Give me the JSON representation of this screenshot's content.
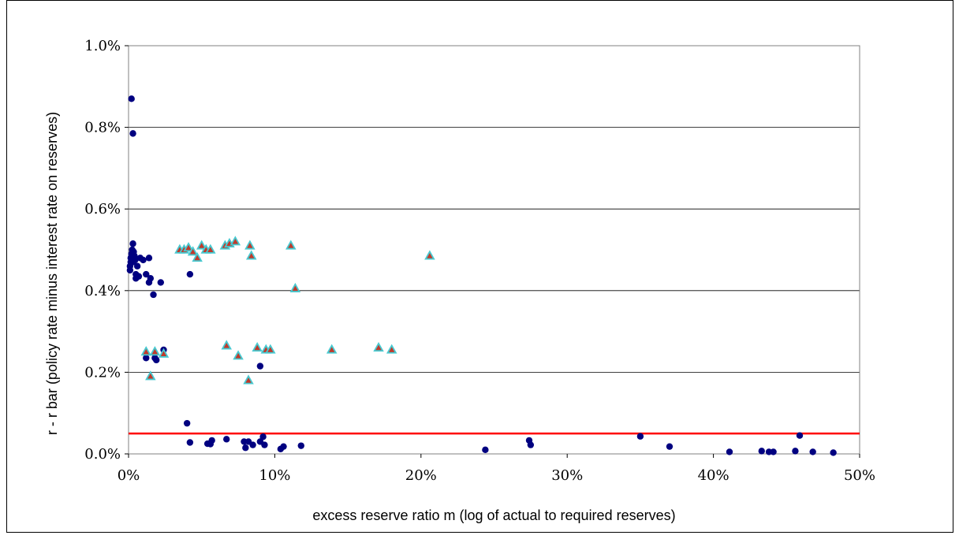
{
  "chart_data": {
    "type": "scatter",
    "title": "",
    "xlabel": "excess reserve ratio m (log of actual to required reserves)",
    "ylabel": "r - r bar (policy rate minus interest rate on reserves)",
    "xlim": [
      0,
      50
    ],
    "ylim": [
      0,
      1.0
    ],
    "x_ticks": [
      0,
      10,
      20,
      30,
      40,
      50
    ],
    "x_tick_labels": [
      "0%",
      "10%",
      "20%",
      "30%",
      "40%",
      "50%"
    ],
    "y_ticks": [
      0,
      0.2,
      0.4,
      0.6,
      0.8,
      1.0
    ],
    "y_tick_labels": [
      "0.0%",
      "0.2%",
      "0.4%",
      "0.6%",
      "0.8%",
      "1.0%"
    ],
    "grid": "horizontal",
    "reference_line": {
      "y": 0.05,
      "color": "#ff0000"
    },
    "colors": {
      "circle": "#000080",
      "triangle_fill": "#c0392b",
      "triangle_stroke": "#48c9d0"
    },
    "series": [
      {
        "marker": "circle",
        "points": [
          [
            0.2,
            0.87
          ],
          [
            0.3,
            0.785
          ],
          [
            0.1,
            0.45
          ],
          [
            0.1,
            0.46
          ],
          [
            0.15,
            0.47
          ],
          [
            0.15,
            0.48
          ],
          [
            0.2,
            0.49
          ],
          [
            0.25,
            0.5
          ],
          [
            0.3,
            0.515
          ],
          [
            0.3,
            0.47
          ],
          [
            0.35,
            0.495
          ],
          [
            0.4,
            0.485
          ],
          [
            0.45,
            0.475
          ],
          [
            0.5,
            0.44
          ],
          [
            0.5,
            0.43
          ],
          [
            0.6,
            0.46
          ],
          [
            0.7,
            0.435
          ],
          [
            0.8,
            0.48
          ],
          [
            1.0,
            0.475
          ],
          [
            1.2,
            0.44
          ],
          [
            1.4,
            0.48
          ],
          [
            1.5,
            0.43
          ],
          [
            1.4,
            0.42
          ],
          [
            1.7,
            0.39
          ],
          [
            2.2,
            0.42
          ],
          [
            4.2,
            0.44
          ],
          [
            1.2,
            0.235
          ],
          [
            1.8,
            0.235
          ],
          [
            1.9,
            0.23
          ],
          [
            2.4,
            0.255
          ],
          [
            9.0,
            0.215
          ],
          [
            4.0,
            0.075
          ],
          [
            4.2,
            0.028
          ],
          [
            5.4,
            0.025
          ],
          [
            5.6,
            0.024
          ],
          [
            5.7,
            0.033
          ],
          [
            6.7,
            0.036
          ],
          [
            7.9,
            0.03
          ],
          [
            8.0,
            0.015
          ],
          [
            8.2,
            0.03
          ],
          [
            8.5,
            0.022
          ],
          [
            9.0,
            0.03
          ],
          [
            9.2,
            0.042
          ],
          [
            9.3,
            0.022
          ],
          [
            10.4,
            0.012
          ],
          [
            10.6,
            0.018
          ],
          [
            11.8,
            0.02
          ],
          [
            24.4,
            0.01
          ],
          [
            27.4,
            0.033
          ],
          [
            27.5,
            0.022
          ],
          [
            35.0,
            0.043
          ],
          [
            37.0,
            0.018
          ],
          [
            41.1,
            0.005
          ],
          [
            43.3,
            0.007
          ],
          [
            43.8,
            0.005
          ],
          [
            44.1,
            0.005
          ],
          [
            45.6,
            0.007
          ],
          [
            45.9,
            0.045
          ],
          [
            46.8,
            0.005
          ],
          [
            48.2,
            0.003
          ]
        ]
      },
      {
        "marker": "triangle",
        "points": [
          [
            3.5,
            0.5
          ],
          [
            3.8,
            0.5
          ],
          [
            4.1,
            0.505
          ],
          [
            4.4,
            0.495
          ],
          [
            4.7,
            0.48
          ],
          [
            5.0,
            0.51
          ],
          [
            5.3,
            0.5
          ],
          [
            5.6,
            0.5
          ],
          [
            6.6,
            0.51
          ],
          [
            6.9,
            0.515
          ],
          [
            7.3,
            0.52
          ],
          [
            8.3,
            0.51
          ],
          [
            8.4,
            0.485
          ],
          [
            11.1,
            0.51
          ],
          [
            11.4,
            0.405
          ],
          [
            20.6,
            0.485
          ],
          [
            1.2,
            0.25
          ],
          [
            1.5,
            0.19
          ],
          [
            1.8,
            0.25
          ],
          [
            2.4,
            0.245
          ],
          [
            6.7,
            0.265
          ],
          [
            7.5,
            0.24
          ],
          [
            8.2,
            0.18
          ],
          [
            8.8,
            0.26
          ],
          [
            9.4,
            0.255
          ],
          [
            9.7,
            0.255
          ],
          [
            13.9,
            0.255
          ],
          [
            17.1,
            0.26
          ],
          [
            18.0,
            0.255
          ]
        ]
      }
    ]
  }
}
